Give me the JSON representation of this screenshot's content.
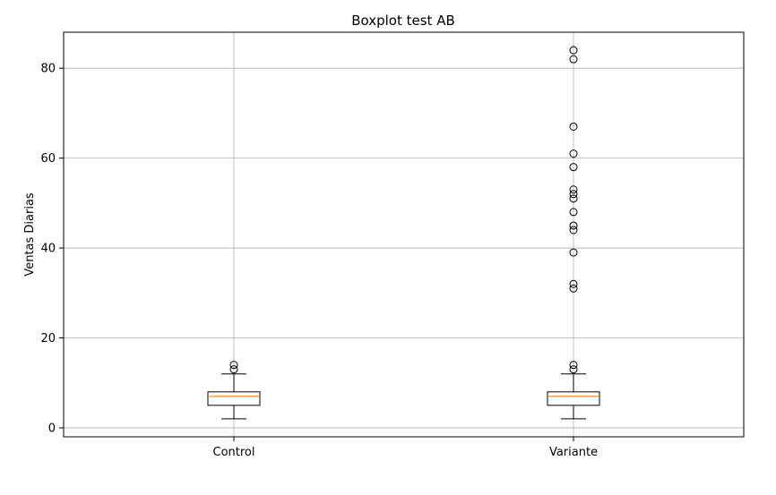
{
  "chart_data": {
    "type": "boxplot",
    "title": "Boxplot test AB",
    "xlabel": "",
    "ylabel": "Ventas Diarias",
    "ylim": [
      -2,
      88
    ],
    "yticks": [
      0,
      20,
      40,
      60,
      80
    ],
    "grid": true,
    "categories": [
      "Control",
      "Variante"
    ],
    "boxes": [
      {
        "category": "Control",
        "whisker_low": 2,
        "q1": 5,
        "median": 7,
        "q3": 8,
        "whisker_high": 12,
        "outliers": [
          13,
          14
        ]
      },
      {
        "category": "Variante",
        "whisker_low": 2,
        "q1": 5,
        "median": 7,
        "q3": 8,
        "whisker_high": 12,
        "outliers": [
          13,
          14,
          31,
          32,
          39,
          44,
          45,
          48,
          51,
          52,
          53,
          58,
          61,
          67,
          82,
          84
        ]
      }
    ],
    "colors": {
      "box": "#000000",
      "median": "#ff7f0e",
      "grid": "#b0b0b0"
    }
  }
}
